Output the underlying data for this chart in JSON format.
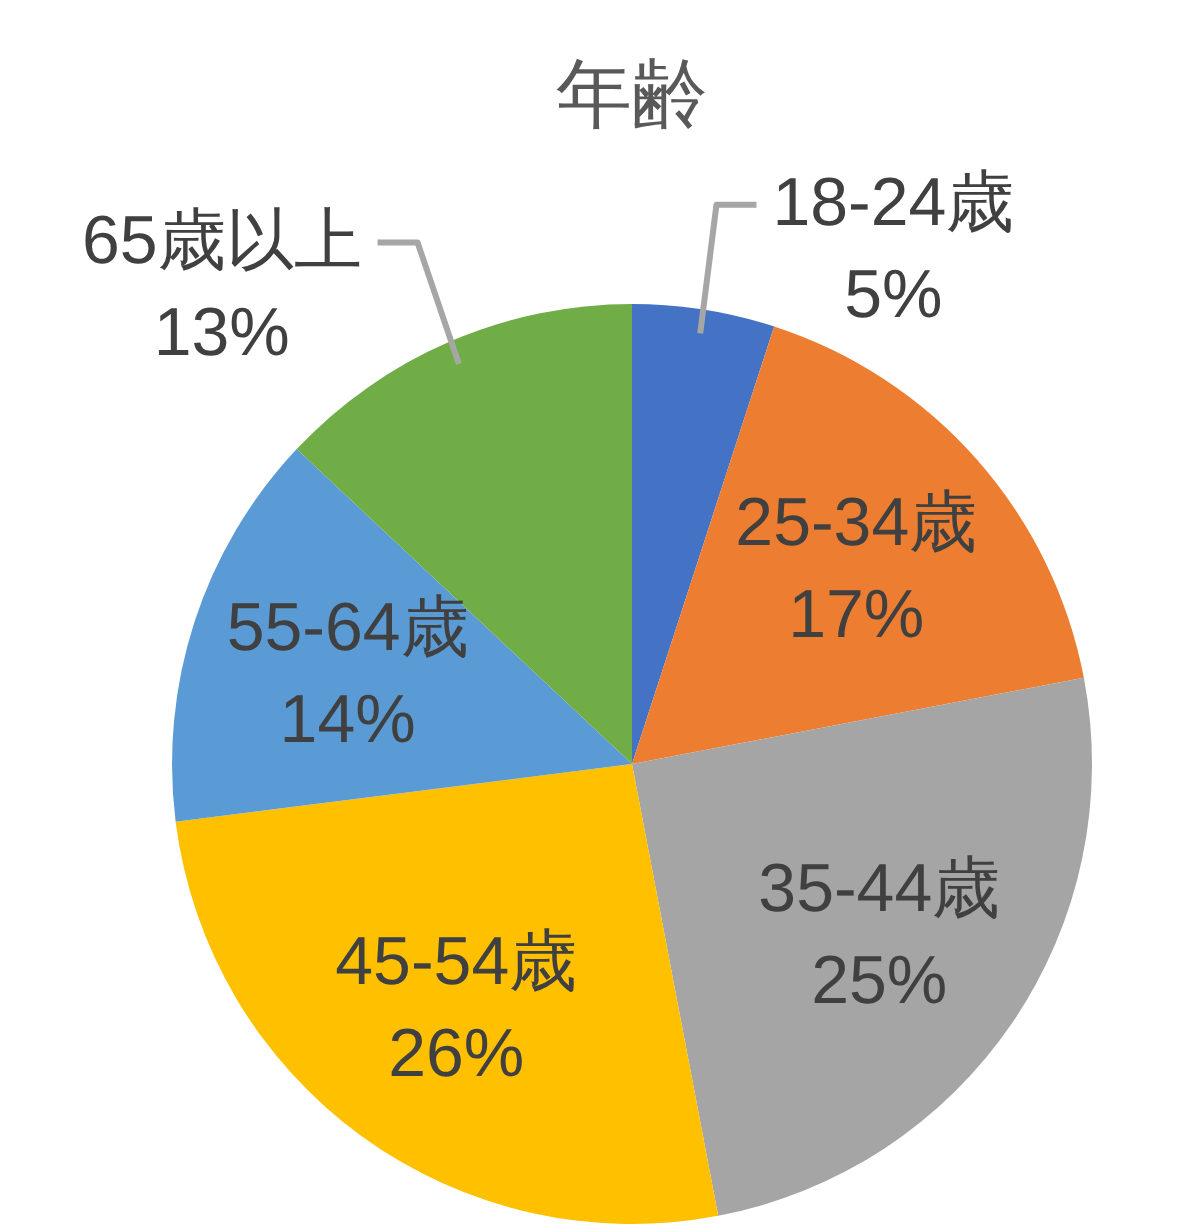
{
  "chart_data": {
    "type": "pie",
    "title": "年齢",
    "categories": [
      "18-24歳",
      "25-34歳",
      "35-44歳",
      "45-54歳",
      "55-64歳",
      "65歳以上"
    ],
    "values": [
      5,
      17,
      25,
      26,
      14,
      13
    ],
    "colors": [
      "#4472c4",
      "#ed7d31",
      "#a5a5a5",
      "#ffc000",
      "#5b9bd5",
      "#70ad47"
    ],
    "value_labels": [
      "5%",
      "17%",
      "25%",
      "26%",
      "14%",
      "13%"
    ]
  }
}
